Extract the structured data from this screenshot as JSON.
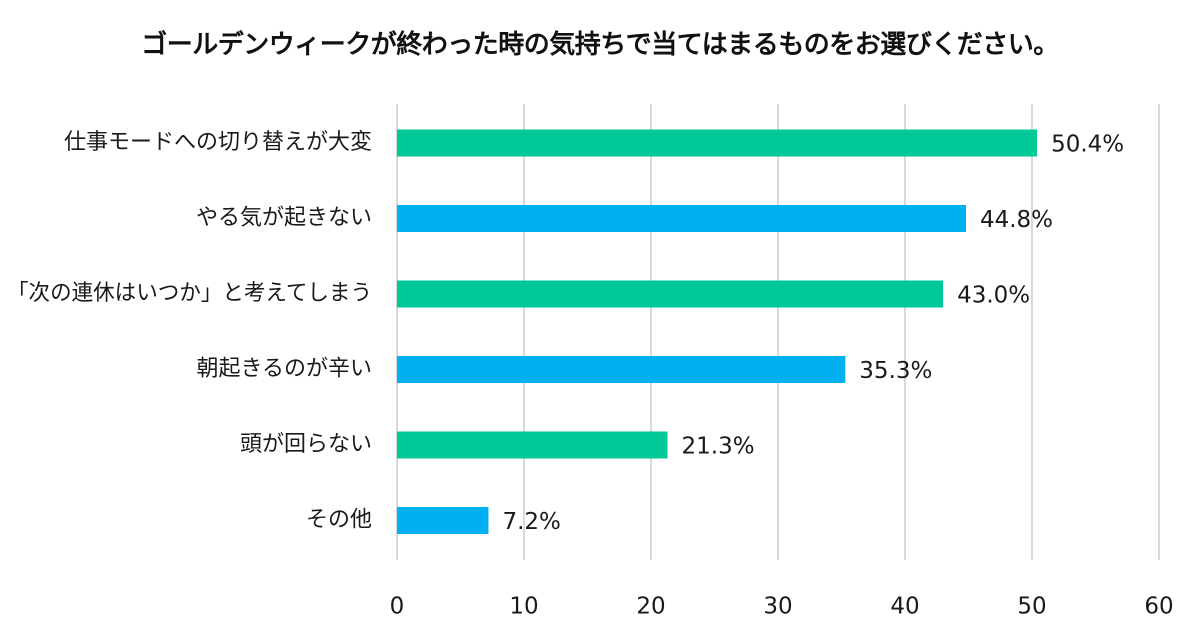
{
  "chart_data": {
    "type": "bar",
    "orientation": "horizontal",
    "title": "ゴールデンウィークが終わった時の気持ちで当てはまるものをお選びください。",
    "categories": [
      "仕事モードへの切り替えが大変",
      "やる気が起きない",
      "「次の連休はいつか」と考えてしまう",
      "朝起きるのが辛い",
      "頭が回らない",
      "その他"
    ],
    "values": [
      50.4,
      44.8,
      43.0,
      35.3,
      21.3,
      7.2
    ],
    "value_labels": [
      "50.4%",
      "44.8%",
      "43.0%",
      "35.3%",
      "21.3%",
      "7.2%"
    ],
    "bar_colors": [
      "#00c896",
      "#00b0f0",
      "#00c896",
      "#00b0f0",
      "#00c896",
      "#00b0f0"
    ],
    "xlabel": "",
    "ylabel": "",
    "xlim": [
      0,
      60
    ],
    "xticks": [
      0,
      10,
      20,
      30,
      40,
      50,
      60
    ],
    "grid": true,
    "legend": "none"
  }
}
